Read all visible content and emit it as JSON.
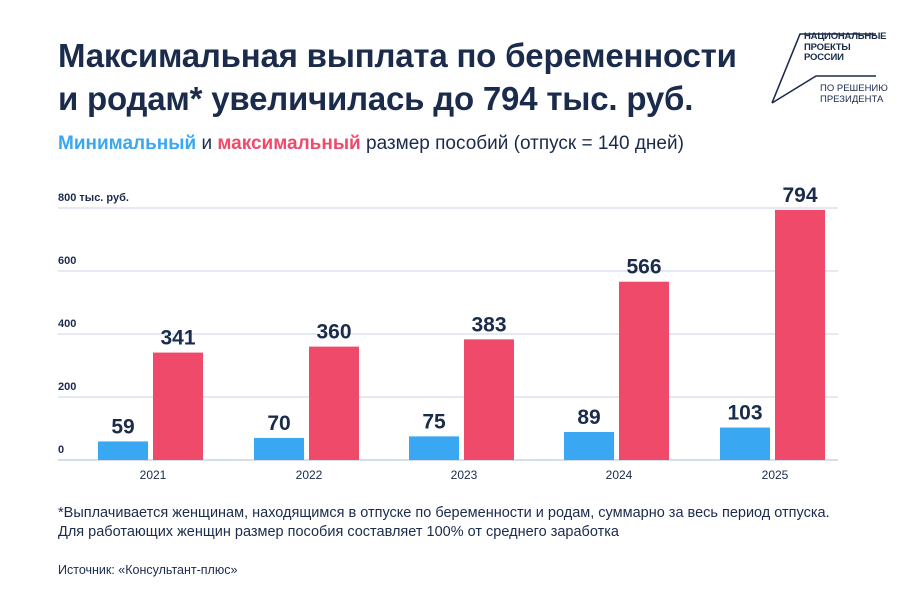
{
  "title": {
    "line1": "Максимальная выплата по беременности",
    "line2": "и родам* увеличилась до 794 тыс. руб."
  },
  "logo": {
    "line1": "НАЦИОНАЛЬНЫЕ",
    "line2": "ПРОЕКТЫ",
    "line3": "РОССИИ",
    "line4": "ПО РЕШЕНИЮ",
    "line5": "ПРЕЗИДЕНТА"
  },
  "subtitle": {
    "min": "Минимальный",
    "and": " и ",
    "max": "максимальный",
    "rest": " размер пособий (отпуск = 140 дней)"
  },
  "colors": {
    "min": "#3aa7f2",
    "max": "#ef4a6a",
    "grid": "#c9d3e6",
    "text": "#1b2b4b"
  },
  "chart_data": {
    "type": "bar",
    "title": "Минимальный и максимальный размер пособий (отпуск = 140 дней)",
    "categories": [
      "2021",
      "2022",
      "2023",
      "2024",
      "2025"
    ],
    "series": [
      {
        "name": "Минимальный",
        "values": [
          59,
          70,
          75,
          89,
          103
        ]
      },
      {
        "name": "Максимальный",
        "values": [
          341,
          360,
          383,
          566,
          794
        ]
      }
    ],
    "yticks": [
      0,
      200,
      400,
      600,
      800
    ],
    "ytick_labels": [
      "0",
      "200",
      "400",
      "600",
      "800 тыс. руб."
    ],
    "ylim": [
      0,
      800
    ],
    "grid": true,
    "xlabel": "",
    "ylabel": "тыс. руб."
  },
  "footnote": "*Выплачивается женщинам, находящимся в отпуске по беременности и родам, суммарно за весь период отпуска. Для работающих женщин размер пособия составляет 100% от среднего заработка",
  "source": "Источник: «Консультант-плюс»"
}
